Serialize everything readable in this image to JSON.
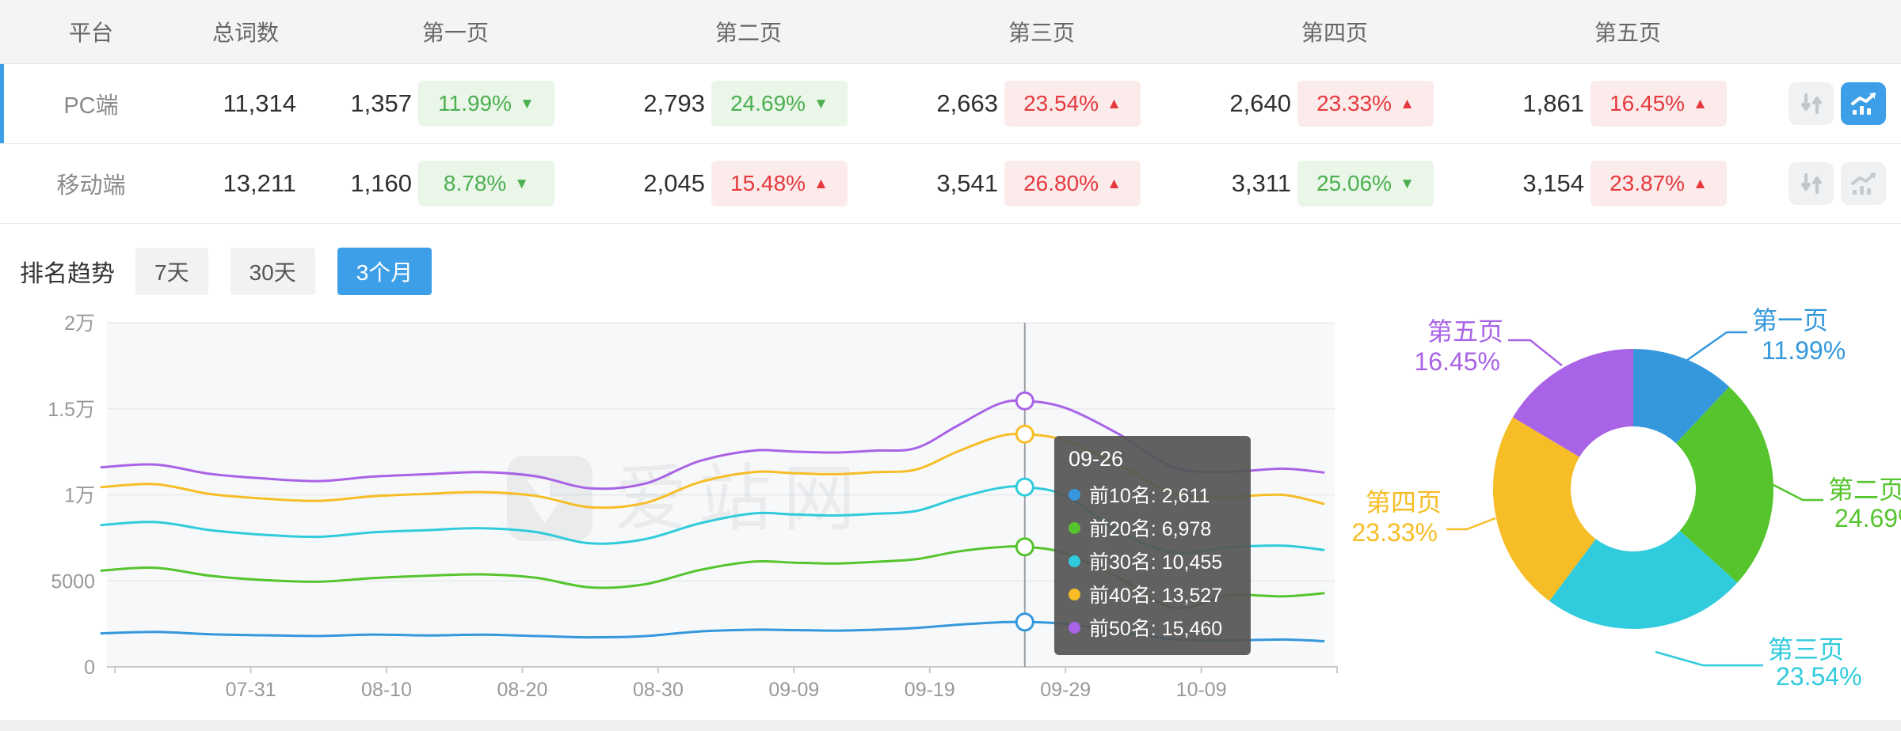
{
  "palette": {
    "accent": "#3D9FE8",
    "positive": "#4CAF50",
    "positive_bg": "#E9F6E8",
    "negative": "#E5393E",
    "negative_bg": "#FCEBEB",
    "series_colors": [
      "#3598DC",
      "#55C42D",
      "#30CBDC",
      "#F6BD26",
      "#A963E6"
    ]
  },
  "table": {
    "headers": [
      "平台",
      "总词数",
      "第一页",
      "第二页",
      "第三页",
      "第四页",
      "第五页"
    ],
    "rows": [
      {
        "platform": "PC端",
        "total": "11,314",
        "selected": true,
        "pages": [
          {
            "count": "1,357",
            "pct": "11.99%",
            "trend": "down",
            "tone": "green"
          },
          {
            "count": "2,793",
            "pct": "24.69%",
            "trend": "down",
            "tone": "green"
          },
          {
            "count": "2,663",
            "pct": "23.54%",
            "trend": "up",
            "tone": "red"
          },
          {
            "count": "2,640",
            "pct": "23.33%",
            "trend": "up",
            "tone": "red"
          },
          {
            "count": "1,861",
            "pct": "16.45%",
            "trend": "up",
            "tone": "red"
          }
        ],
        "sort_button_active": false,
        "chart_button_active": true
      },
      {
        "platform": "移动端",
        "total": "13,211",
        "selected": false,
        "pages": [
          {
            "count": "1,160",
            "pct": "8.78%",
            "trend": "down",
            "tone": "green"
          },
          {
            "count": "2,045",
            "pct": "15.48%",
            "trend": "up",
            "tone": "red"
          },
          {
            "count": "3,541",
            "pct": "26.80%",
            "trend": "up",
            "tone": "red"
          },
          {
            "count": "3,311",
            "pct": "25.06%",
            "trend": "down",
            "tone": "green"
          },
          {
            "count": "3,154",
            "pct": "23.87%",
            "trend": "up",
            "tone": "red"
          }
        ],
        "sort_button_active": false,
        "chart_button_active": false
      }
    ]
  },
  "trend_section": {
    "title": "排名趋势",
    "tabs": [
      {
        "label": "7天",
        "active": false
      },
      {
        "label": "30天",
        "active": false
      },
      {
        "label": "3个月",
        "active": true
      }
    ]
  },
  "watermark": "爱站网",
  "tooltip": {
    "title": "09-26",
    "items": [
      {
        "label": "前10名",
        "value": "2,611",
        "color": "#3598DC"
      },
      {
        "label": "前20名",
        "value": "6,978",
        "color": "#55C42D"
      },
      {
        "label": "前30名",
        "value": "10,455",
        "color": "#30CBDC"
      },
      {
        "label": "前40名",
        "value": "13,527",
        "color": "#F6BD26"
      },
      {
        "label": "前50名",
        "value": "15,460",
        "color": "#A963E6"
      }
    ]
  },
  "chart_data": [
    {
      "type": "line",
      "title": "排名趋势（3个月）",
      "ylim": [
        0,
        20000
      ],
      "grid": true,
      "legend_position": "none",
      "pointer_x": "09-26",
      "y_ticks": [
        {
          "v": 0,
          "label": "0"
        },
        {
          "v": 5000,
          "label": "5000"
        },
        {
          "v": 10000,
          "label": "1万"
        },
        {
          "v": 15000,
          "label": "1.5万"
        },
        {
          "v": 20000,
          "label": "2万"
        }
      ],
      "x_tick_labels": [
        "07-31",
        "08-10",
        "08-20",
        "08-30",
        "09-09",
        "09-19",
        "09-29",
        "10-09"
      ],
      "x": [
        "07-20",
        "07-24",
        "07-28",
        "08-01",
        "08-05",
        "08-09",
        "08-13",
        "08-17",
        "08-21",
        "08-25",
        "08-29",
        "09-02",
        "09-06",
        "09-09",
        "09-12",
        "09-15",
        "09-18",
        "09-21",
        "09-24",
        "09-26",
        "09-29",
        "10-03",
        "10-07",
        "10-11",
        "10-15",
        "10-18"
      ],
      "series": [
        {
          "name": "前10名",
          "color": "#3598DC",
          "values": [
            1950,
            2030,
            1900,
            1840,
            1800,
            1880,
            1830,
            1870,
            1800,
            1720,
            1790,
            2060,
            2160,
            2140,
            2110,
            2160,
            2260,
            2450,
            2590,
            2611,
            2500,
            2050,
            1600,
            1540,
            1590,
            1500
          ]
        },
        {
          "name": "前20名",
          "color": "#55C42D",
          "values": [
            5600,
            5760,
            5300,
            5050,
            4950,
            5160,
            5300,
            5380,
            5180,
            4620,
            4800,
            5620,
            6120,
            6060,
            6010,
            6110,
            6260,
            6700,
            6950,
            6978,
            6600,
            5150,
            3420,
            4150,
            4100,
            4280
          ]
        },
        {
          "name": "前30名",
          "color": "#30CBDC",
          "values": [
            8250,
            8420,
            7950,
            7680,
            7560,
            7820,
            7950,
            8060,
            7840,
            7180,
            7420,
            8330,
            8920,
            8860,
            8800,
            8900,
            9060,
            9800,
            10380,
            10455,
            9950,
            7850,
            6650,
            6950,
            7050,
            6800
          ]
        },
        {
          "name": "前40名",
          "color": "#F6BD26",
          "values": [
            10450,
            10620,
            10050,
            9780,
            9650,
            9920,
            10060,
            10160,
            9940,
            9280,
            9520,
            10720,
            11320,
            11260,
            11200,
            11320,
            11470,
            12500,
            13380,
            13527,
            13150,
            11700,
            10100,
            9900,
            10000,
            9480
          ]
        },
        {
          "name": "前50名",
          "color": "#A963E6",
          "values": [
            11600,
            11760,
            11220,
            10950,
            10800,
            11060,
            11200,
            11320,
            11080,
            10380,
            10650,
            11950,
            12570,
            12510,
            12460,
            12570,
            12720,
            14000,
            15260,
            15460,
            15050,
            13500,
            11600,
            11350,
            11520,
            11300
          ]
        }
      ]
    },
    {
      "type": "pie",
      "donut": true,
      "labels": [
        "第一页",
        "第二页",
        "第三页",
        "第四页",
        "第五页"
      ],
      "values": [
        11.99,
        24.69,
        23.54,
        23.33,
        16.45
      ],
      "value_labels": [
        "11.99%",
        "24.69%",
        "23.54%",
        "23.33%",
        "16.45%"
      ],
      "colors": [
        "#3598DC",
        "#55C42D",
        "#30CBDC",
        "#F6BD26",
        "#A963E6"
      ]
    }
  ]
}
